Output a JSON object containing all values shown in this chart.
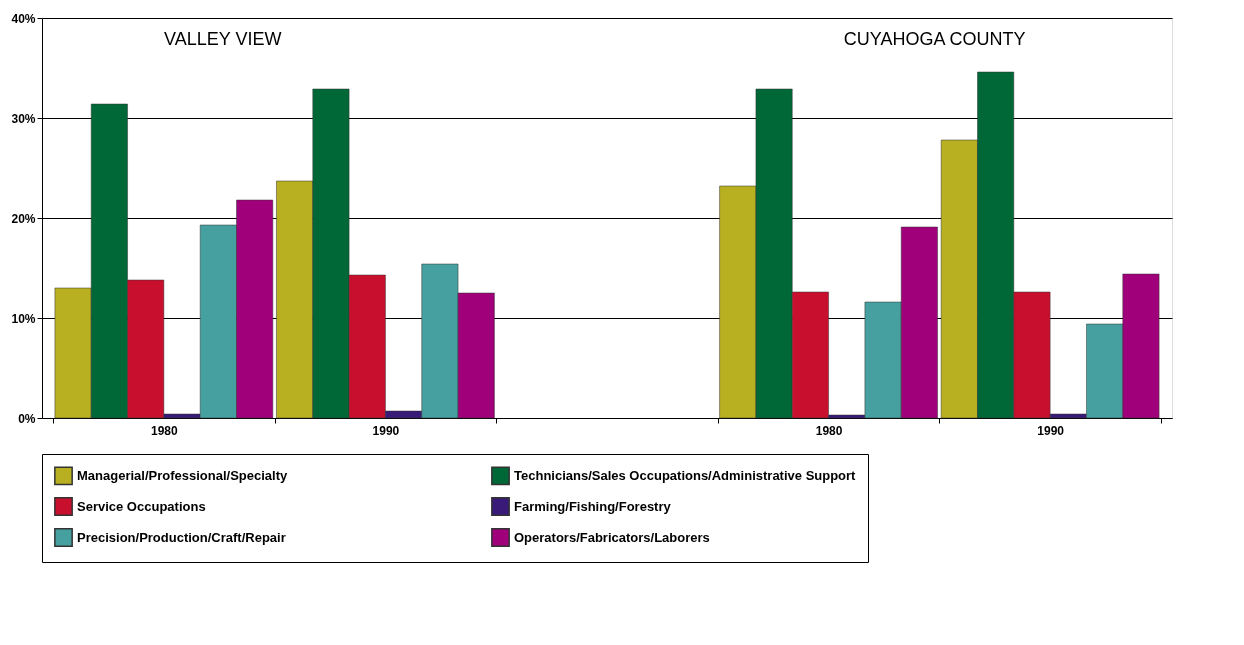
{
  "chart_data": {
    "type": "bar",
    "categories": [
      "1980",
      "1990",
      null,
      "1980",
      "1990"
    ],
    "series": [
      {
        "name": "Managerial/Professional/Specialty",
        "color": "#b8b020",
        "values": [
          13.0,
          23.7,
          null,
          23.2,
          27.8
        ]
      },
      {
        "name": "Technicians/Sales Occupations/Administrative Support",
        "color": "#006837",
        "values": [
          31.4,
          32.9,
          null,
          32.9,
          34.6
        ]
      },
      {
        "name": "Service Occupations",
        "color": "#c8102e",
        "values": [
          13.8,
          14.3,
          null,
          12.6,
          12.6
        ]
      },
      {
        "name": "Farming/Fishing/Forestry",
        "color": "#3a1a78",
        "values": [
          0.4,
          0.7,
          null,
          0.3,
          0.4
        ]
      },
      {
        "name": "Precision/Production/Craft/Repair",
        "color": "#46a0a0",
        "values": [
          19.3,
          15.4,
          null,
          11.6,
          9.4
        ]
      },
      {
        "name": "Operators/Fabricators/Laborers",
        "color": "#a0007a",
        "values": [
          21.8,
          12.5,
          null,
          19.1,
          14.4
        ]
      }
    ],
    "ylim": [
      0,
      40
    ],
    "yticks": [
      {
        "value": 0,
        "label": "0%"
      },
      {
        "value": 10,
        "label": "10%"
      },
      {
        "value": 20,
        "label": "20%"
      },
      {
        "value": 30,
        "label": "30%"
      },
      {
        "value": 40,
        "label": "40%"
      }
    ],
    "annotations": [
      "VALLEY VIEW",
      "CUYAHOGA COUNTY"
    ],
    "grid": "y",
    "legend": "bottom"
  }
}
